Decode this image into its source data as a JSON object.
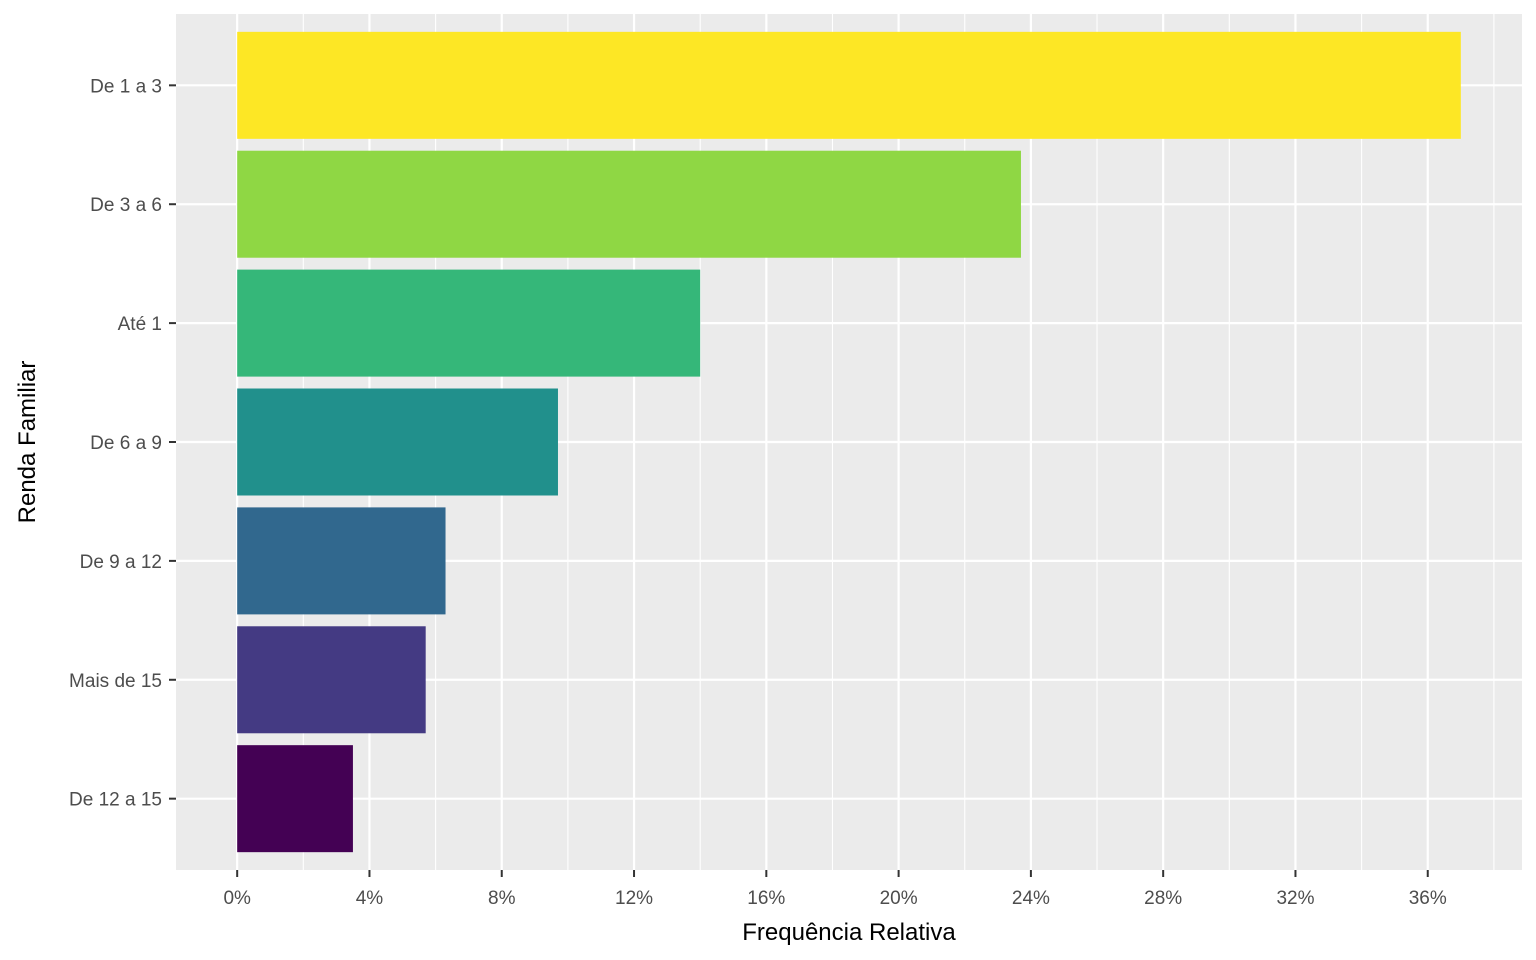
{
  "chart_data": {
    "type": "bar",
    "orientation": "horizontal",
    "title": "",
    "xlabel": "Frequência Relativa",
    "ylabel": "Renda Familiar",
    "categories": [
      "De 1 a 3",
      "De 3 a 6",
      "Até 1",
      "De 6 a 9",
      "De 9 a 12",
      "Mais de 15",
      "De 12 a 15"
    ],
    "values": [
      37.0,
      23.7,
      14.0,
      9.7,
      6.3,
      5.7,
      3.5
    ],
    "colors": [
      "#FDE725",
      "#8FD744",
      "#35B779",
      "#21908C",
      "#31688E",
      "#443A83",
      "#440154"
    ],
    "xlim": [
      -1.85,
      38.85
    ],
    "xticks": [
      0,
      4,
      8,
      12,
      16,
      20,
      24,
      28,
      32,
      36
    ],
    "xtick_labels": [
      "0%",
      "4%",
      "8%",
      "12%",
      "16%",
      "20%",
      "24%",
      "28%",
      "32%",
      "36%"
    ],
    "grid": true,
    "legend": "none",
    "panel_background": "#EBEBEB",
    "grid_color": "#FFFFFF"
  }
}
